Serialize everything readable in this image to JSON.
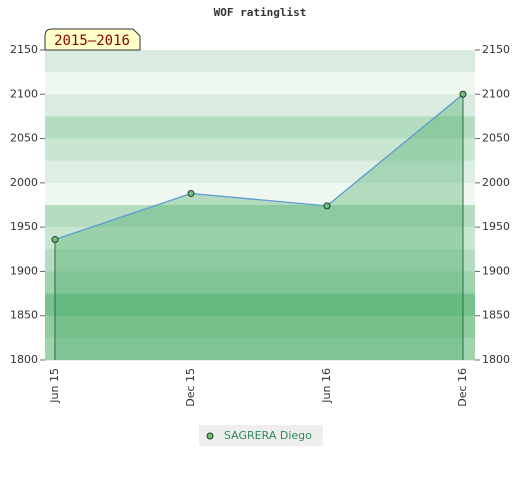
{
  "chart_data": {
    "type": "area",
    "title": "WOF ratinglist",
    "annotation": "2015–2016",
    "categories": [
      "Jun 15",
      "Dec 15",
      "Jun 16",
      "Dec 16"
    ],
    "series": [
      {
        "name": "SAGRERA Diego",
        "color": "#5b9bd5",
        "values": [
          1936,
          1988,
          1974,
          2100
        ]
      }
    ],
    "ylim": [
      1800,
      2150
    ],
    "yticks": [
      1800,
      1850,
      1900,
      1950,
      2000,
      2050,
      2100,
      2150
    ],
    "right_axis": true,
    "legend": "bottom"
  }
}
